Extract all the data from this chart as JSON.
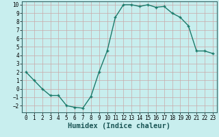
{
  "x": [
    0,
    1,
    2,
    3,
    4,
    5,
    6,
    7,
    8,
    9,
    10,
    11,
    12,
    13,
    14,
    15,
    16,
    17,
    18,
    19,
    20,
    21,
    22,
    23
  ],
  "y": [
    2.0,
    1.0,
    0.0,
    -0.8,
    -0.8,
    -2.0,
    -2.2,
    -2.3,
    -0.9,
    2.0,
    4.5,
    8.5,
    10.0,
    10.0,
    9.8,
    10.0,
    9.7,
    9.8,
    9.0,
    8.5,
    7.5,
    4.5,
    4.5,
    4.2
  ],
  "line_color": "#1a7a6a",
  "marker": "+",
  "marker_size": 3,
  "line_width": 1.0,
  "bg_color": "#c8eeee",
  "grid_color": "#aadddd",
  "xlabel": "Humidex (Indice chaleur)",
  "xlim": [
    -0.5,
    23.5
  ],
  "ylim": [
    -2.8,
    10.4
  ],
  "yticks": [
    -2,
    -1,
    0,
    1,
    2,
    3,
    4,
    5,
    6,
    7,
    8,
    9,
    10
  ],
  "xticks": [
    0,
    1,
    2,
    3,
    4,
    5,
    6,
    7,
    8,
    9,
    10,
    11,
    12,
    13,
    14,
    15,
    16,
    17,
    18,
    19,
    20,
    21,
    22,
    23
  ],
  "tick_labelsize": 5.5,
  "xlabel_fontsize": 7.5,
  "markeredgewidth": 1.0,
  "spine_color": "#336666"
}
